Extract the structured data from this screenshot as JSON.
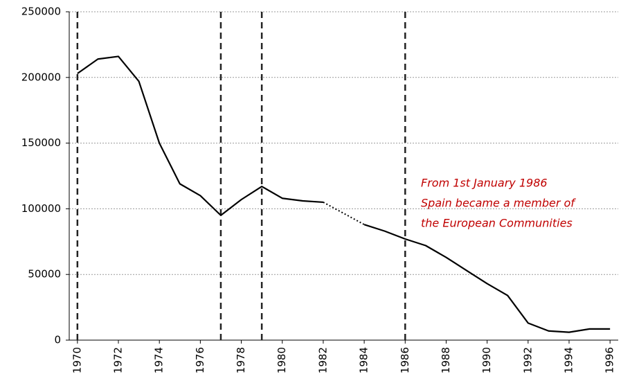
{
  "chart_data": {
    "type": "line",
    "x": [
      1970,
      1971,
      1972,
      1973,
      1974,
      1975,
      1976,
      1977,
      1978,
      1979,
      1980,
      1981,
      1982,
      1983,
      1984,
      1985,
      1986,
      1987,
      1988,
      1989,
      1990,
      1991,
      1992,
      1993,
      1994,
      1995,
      1996
    ],
    "series": [
      {
        "color": "#000000",
        "values": [
          203000,
          214000,
          216000,
          197000,
          150000,
          119000,
          110000,
          95000,
          107000,
          117000,
          108000,
          106000,
          105000,
          null,
          88000,
          83000,
          77000,
          72000,
          63000,
          53000,
          43000,
          34000,
          13000,
          7000,
          6000,
          8500,
          8500
        ]
      }
    ],
    "xlim": [
      1969.6,
      1996.4
    ],
    "xticks": [
      1970,
      1972,
      1974,
      1976,
      1978,
      1980,
      1982,
      1984,
      1986,
      1988,
      1990,
      1992,
      1994,
      1996
    ],
    "ylim": [
      0,
      250000
    ],
    "yticks": [
      0,
      50000,
      100000,
      150000,
      200000,
      250000
    ],
    "grid": true,
    "vlines": [
      1970,
      1977,
      1979,
      1986
    ],
    "annotation": [
      "From 1st January 1986",
      "Spain became a member of",
      "the European Communities"
    ]
  }
}
